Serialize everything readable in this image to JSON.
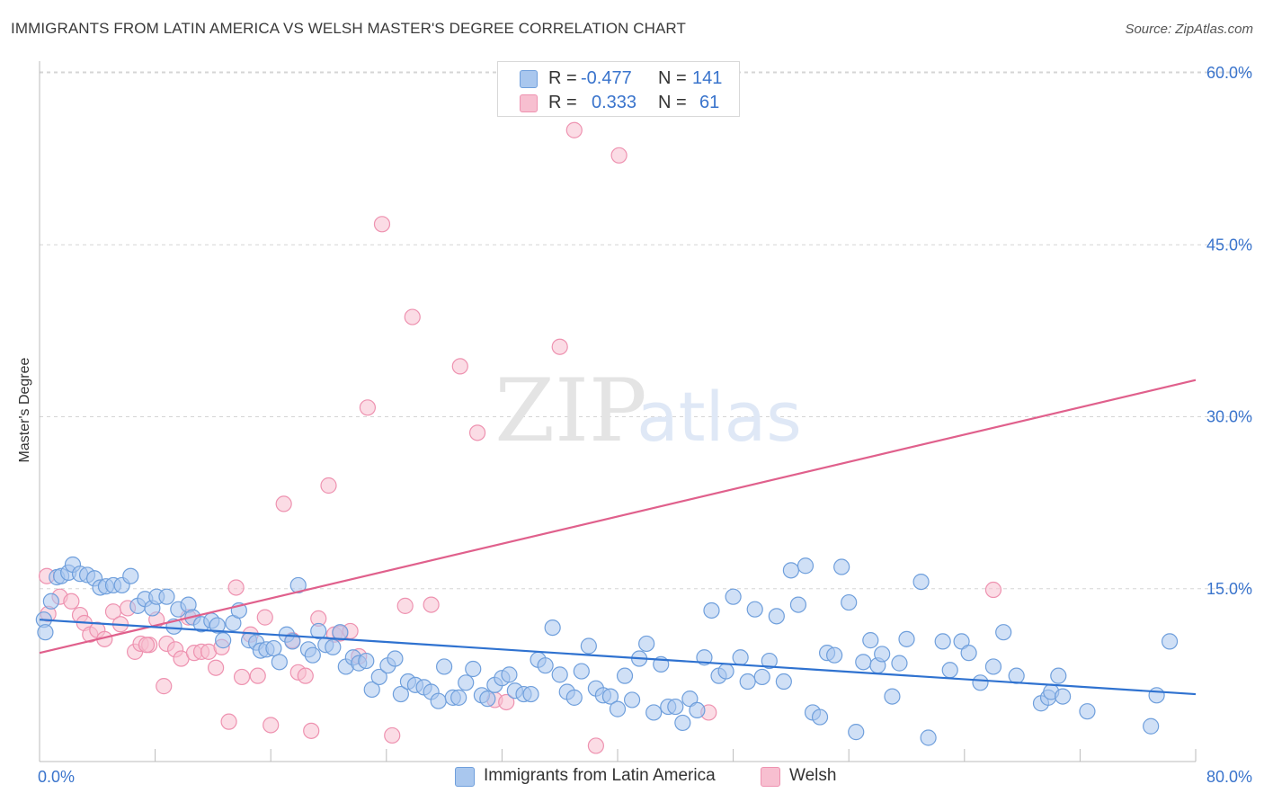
{
  "title": "IMMIGRANTS FROM LATIN AMERICA VS WELSH MASTER'S DEGREE CORRELATION CHART",
  "source": "Source: ZipAtlas.com",
  "watermark": {
    "zip": "ZIP",
    "atlas": "atlas"
  },
  "legend": {
    "r_label": "R =",
    "n_label": "N =",
    "blue": {
      "r": "-0.477",
      "n": "141"
    },
    "pink": {
      "r": "0.333",
      "n": "61"
    }
  },
  "bottom_legend": {
    "blue": "Immigrants from Latin America",
    "pink": "Welsh"
  },
  "colors": {
    "blue_fill": "#a9c7ee",
    "blue_stroke": "#6f9fdc",
    "blue_line": "#2f72d0",
    "pink_fill": "#f7bfd0",
    "pink_stroke": "#ee92b0",
    "pink_line": "#e0608c",
    "axis_text": "#3a74cc",
    "grid": "#d5d5d5"
  },
  "chart_data": {
    "type": "scatter",
    "title": "IMMIGRANTS FROM LATIN AMERICA VS WELSH MASTER'S DEGREE CORRELATION CHART",
    "xlabel": "",
    "ylabel": "Master's Degree",
    "xlim": [
      0,
      80
    ],
    "ylim": [
      0,
      60
    ],
    "x_tick_labels": [
      "0.0%",
      "80.0%"
    ],
    "y_ticks": [
      15,
      30,
      45,
      60
    ],
    "y_tick_labels": [
      "15.0%",
      "30.0%",
      "45.0%",
      "60.0%"
    ],
    "series": [
      {
        "name": "Immigrants from Latin America",
        "color": "blue",
        "r": -0.477,
        "n": 141,
        "trend": {
          "x": [
            0,
            80
          ],
          "y": [
            12.3,
            5.8
          ]
        },
        "points": [
          [
            0.3,
            12.3
          ],
          [
            0.4,
            11.2
          ],
          [
            0.8,
            13.9
          ],
          [
            1.2,
            16.0
          ],
          [
            1.5,
            16.1
          ],
          [
            2.0,
            16.4
          ],
          [
            2.3,
            17.1
          ],
          [
            2.8,
            16.3
          ],
          [
            3.3,
            16.2
          ],
          [
            3.8,
            15.9
          ],
          [
            4.2,
            15.1
          ],
          [
            4.6,
            15.2
          ],
          [
            5.1,
            15.3
          ],
          [
            5.7,
            15.3
          ],
          [
            6.3,
            16.1
          ],
          [
            6.8,
            13.5
          ],
          [
            7.3,
            14.1
          ],
          [
            7.8,
            13.3
          ],
          [
            8.1,
            14.3
          ],
          [
            8.8,
            14.3
          ],
          [
            9.3,
            11.7
          ],
          [
            9.6,
            13.2
          ],
          [
            10.3,
            13.6
          ],
          [
            10.6,
            12.5
          ],
          [
            11.2,
            11.9
          ],
          [
            11.9,
            12.2
          ],
          [
            12.3,
            11.8
          ],
          [
            12.7,
            10.5
          ],
          [
            13.4,
            12.0
          ],
          [
            13.8,
            13.1
          ],
          [
            14.5,
            10.5
          ],
          [
            15.0,
            10.3
          ],
          [
            15.3,
            9.6
          ],
          [
            15.7,
            9.7
          ],
          [
            16.2,
            9.8
          ],
          [
            16.6,
            8.6
          ],
          [
            17.1,
            11.0
          ],
          [
            17.5,
            10.4
          ],
          [
            17.9,
            15.3
          ],
          [
            18.6,
            9.7
          ],
          [
            18.9,
            9.2
          ],
          [
            19.3,
            11.3
          ],
          [
            19.8,
            10.1
          ],
          [
            20.3,
            9.9
          ],
          [
            20.8,
            11.2
          ],
          [
            21.2,
            8.2
          ],
          [
            21.7,
            9.0
          ],
          [
            22.1,
            8.5
          ],
          [
            22.6,
            8.7
          ],
          [
            23.0,
            6.2
          ],
          [
            23.5,
            7.3
          ],
          [
            24.1,
            8.3
          ],
          [
            24.6,
            8.9
          ],
          [
            25.0,
            5.8
          ],
          [
            25.5,
            6.9
          ],
          [
            26.0,
            6.6
          ],
          [
            26.6,
            6.4
          ],
          [
            27.1,
            6.0
          ],
          [
            27.6,
            5.2
          ],
          [
            28.0,
            8.2
          ],
          [
            28.6,
            5.5
          ],
          [
            29.0,
            5.5
          ],
          [
            29.5,
            6.8
          ],
          [
            30.0,
            8.0
          ],
          [
            30.6,
            5.7
          ],
          [
            31.0,
            5.4
          ],
          [
            31.5,
            6.6
          ],
          [
            32.0,
            7.2
          ],
          [
            32.5,
            7.5
          ],
          [
            32.9,
            6.1
          ],
          [
            33.5,
            5.8
          ],
          [
            34.0,
            5.8
          ],
          [
            34.5,
            8.8
          ],
          [
            35.0,
            8.3
          ],
          [
            35.5,
            11.6
          ],
          [
            36.0,
            7.5
          ],
          [
            36.5,
            6.0
          ],
          [
            37.0,
            5.5
          ],
          [
            37.5,
            7.8
          ],
          [
            38.0,
            10.0
          ],
          [
            38.5,
            6.3
          ],
          [
            39.0,
            5.7
          ],
          [
            39.5,
            5.6
          ],
          [
            40.0,
            4.5
          ],
          [
            40.5,
            7.4
          ],
          [
            41.0,
            5.3
          ],
          [
            41.5,
            8.9
          ],
          [
            42.0,
            10.2
          ],
          [
            42.5,
            4.2
          ],
          [
            43.0,
            8.4
          ],
          [
            43.5,
            4.7
          ],
          [
            44.0,
            4.7
          ],
          [
            44.5,
            3.3
          ],
          [
            45.0,
            5.4
          ],
          [
            45.5,
            4.4
          ],
          [
            46.0,
            9.0
          ],
          [
            46.5,
            13.1
          ],
          [
            47.0,
            7.4
          ],
          [
            47.5,
            7.8
          ],
          [
            48.0,
            14.3
          ],
          [
            48.5,
            9.0
          ],
          [
            49.0,
            6.9
          ],
          [
            49.5,
            13.2
          ],
          [
            50.0,
            7.3
          ],
          [
            50.5,
            8.7
          ],
          [
            51.0,
            12.6
          ],
          [
            51.5,
            6.9
          ],
          [
            52.0,
            16.6
          ],
          [
            52.5,
            13.6
          ],
          [
            53.0,
            17.0
          ],
          [
            53.5,
            4.2
          ],
          [
            54.0,
            3.8
          ],
          [
            54.5,
            9.4
          ],
          [
            55.0,
            9.2
          ],
          [
            55.5,
            16.9
          ],
          [
            56.0,
            13.8
          ],
          [
            56.5,
            2.5
          ],
          [
            57.0,
            8.6
          ],
          [
            57.5,
            10.5
          ],
          [
            58.0,
            8.3
          ],
          [
            58.3,
            9.3
          ],
          [
            59.0,
            5.6
          ],
          [
            59.5,
            8.5
          ],
          [
            60.0,
            10.6
          ],
          [
            61.0,
            15.6
          ],
          [
            61.5,
            2.0
          ],
          [
            62.5,
            10.4
          ],
          [
            63.0,
            7.9
          ],
          [
            63.8,
            10.4
          ],
          [
            64.3,
            9.4
          ],
          [
            65.1,
            6.8
          ],
          [
            66.0,
            8.2
          ],
          [
            66.7,
            11.2
          ],
          [
            67.6,
            7.4
          ],
          [
            69.3,
            5.0
          ],
          [
            69.8,
            5.5
          ],
          [
            70.0,
            6.0
          ],
          [
            70.5,
            7.4
          ],
          [
            70.8,
            5.6
          ],
          [
            72.5,
            4.3
          ],
          [
            76.9,
            3.0
          ],
          [
            77.3,
            5.7
          ],
          [
            78.2,
            10.4
          ]
        ]
      },
      {
        "name": "Welsh",
        "color": "pink",
        "r": 0.333,
        "n": 61,
        "trend": {
          "x": [
            0,
            80
          ],
          "y": [
            9.4,
            33.2
          ]
        },
        "points": [
          [
            0.5,
            16.1
          ],
          [
            0.6,
            12.8
          ],
          [
            1.4,
            14.3
          ],
          [
            2.2,
            13.9
          ],
          [
            2.8,
            12.7
          ],
          [
            3.1,
            12.0
          ],
          [
            3.5,
            11.0
          ],
          [
            4.0,
            11.4
          ],
          [
            4.5,
            10.6
          ],
          [
            5.1,
            13.0
          ],
          [
            5.6,
            11.9
          ],
          [
            6.1,
            13.3
          ],
          [
            6.6,
            9.5
          ],
          [
            7.0,
            10.2
          ],
          [
            7.6,
            10.1
          ],
          [
            8.1,
            12.3
          ],
          [
            8.6,
            6.5
          ],
          [
            8.8,
            10.2
          ],
          [
            9.4,
            9.7
          ],
          [
            9.8,
            8.9
          ],
          [
            10.3,
            12.5
          ],
          [
            10.7,
            9.4
          ],
          [
            11.2,
            9.5
          ],
          [
            11.7,
            9.5
          ],
          [
            12.2,
            8.1
          ],
          [
            12.6,
            9.9
          ],
          [
            13.1,
            3.4
          ],
          [
            13.6,
            15.1
          ],
          [
            14.0,
            7.3
          ],
          [
            14.6,
            11.0
          ],
          [
            15.1,
            7.4
          ],
          [
            15.6,
            12.5
          ],
          [
            16.0,
            3.1
          ],
          [
            16.9,
            22.4
          ],
          [
            17.5,
            10.5
          ],
          [
            17.9,
            7.7
          ],
          [
            18.4,
            7.4
          ],
          [
            18.8,
            2.6
          ],
          [
            19.3,
            12.4
          ],
          [
            20.0,
            24.0
          ],
          [
            20.4,
            11.0
          ],
          [
            20.8,
            11.1
          ],
          [
            21.5,
            11.3
          ],
          [
            22.1,
            9.1
          ],
          [
            22.7,
            30.8
          ],
          [
            23.7,
            46.8
          ],
          [
            24.4,
            2.2
          ],
          [
            25.3,
            13.5
          ],
          [
            25.8,
            38.7
          ],
          [
            27.1,
            13.6
          ],
          [
            29.1,
            34.4
          ],
          [
            30.3,
            28.6
          ],
          [
            31.5,
            5.3
          ],
          [
            32.3,
            5.1
          ],
          [
            36.0,
            36.1
          ],
          [
            37.0,
            55.0
          ],
          [
            38.5,
            1.3
          ],
          [
            40.1,
            52.8
          ],
          [
            46.3,
            4.2
          ],
          [
            66.0,
            14.9
          ],
          [
            7.4,
            10.1
          ]
        ]
      }
    ]
  }
}
